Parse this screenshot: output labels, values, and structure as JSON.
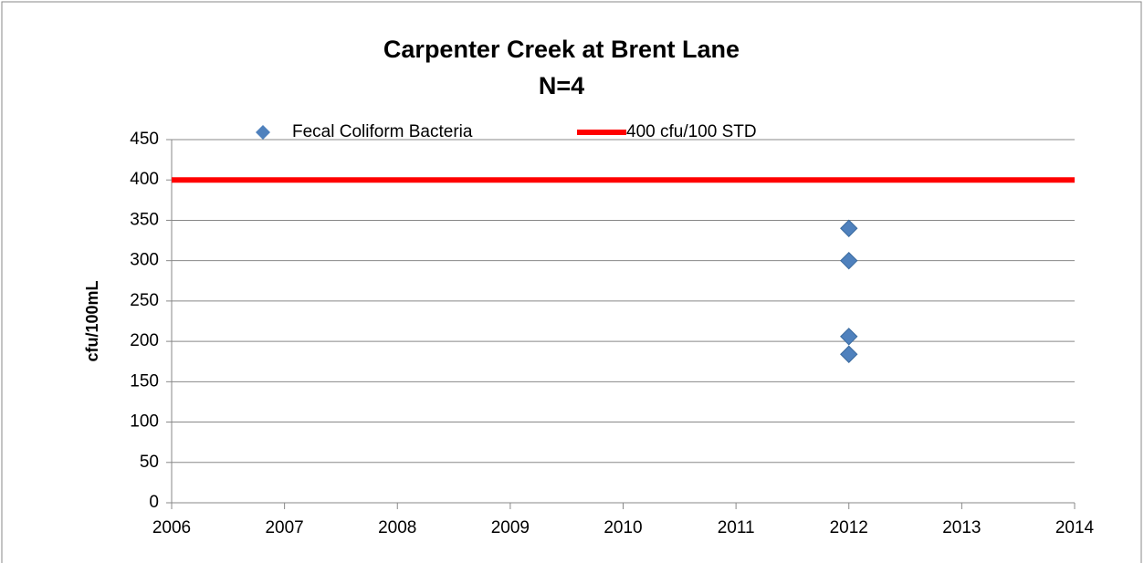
{
  "chart_data": {
    "type": "scatter",
    "title": "Carpenter Creek at Brent Lane",
    "subtitle": "N=4",
    "y_label": "cfu/100mL",
    "xlim": [
      2006,
      2014
    ],
    "xticks": [
      2006,
      2007,
      2008,
      2009,
      2010,
      2011,
      2012,
      2013,
      2014
    ],
    "ylim": [
      0,
      450
    ],
    "yticks": [
      0,
      50,
      100,
      150,
      200,
      250,
      300,
      350,
      400,
      450
    ],
    "grid": true,
    "legend": "top",
    "series": [
      {
        "name": "Fecal Coliform Bacteria",
        "color": "#4f81bd",
        "mode": "markers",
        "x": [
          2012,
          2012,
          2012,
          2012
        ],
        "values": [
          340,
          300,
          206,
          184
        ]
      },
      {
        "name": "400 cfu/100 STD",
        "color": "#ff0000",
        "mode": "line",
        "x": [
          2006,
          2014
        ],
        "values": [
          400,
          400
        ]
      }
    ]
  }
}
